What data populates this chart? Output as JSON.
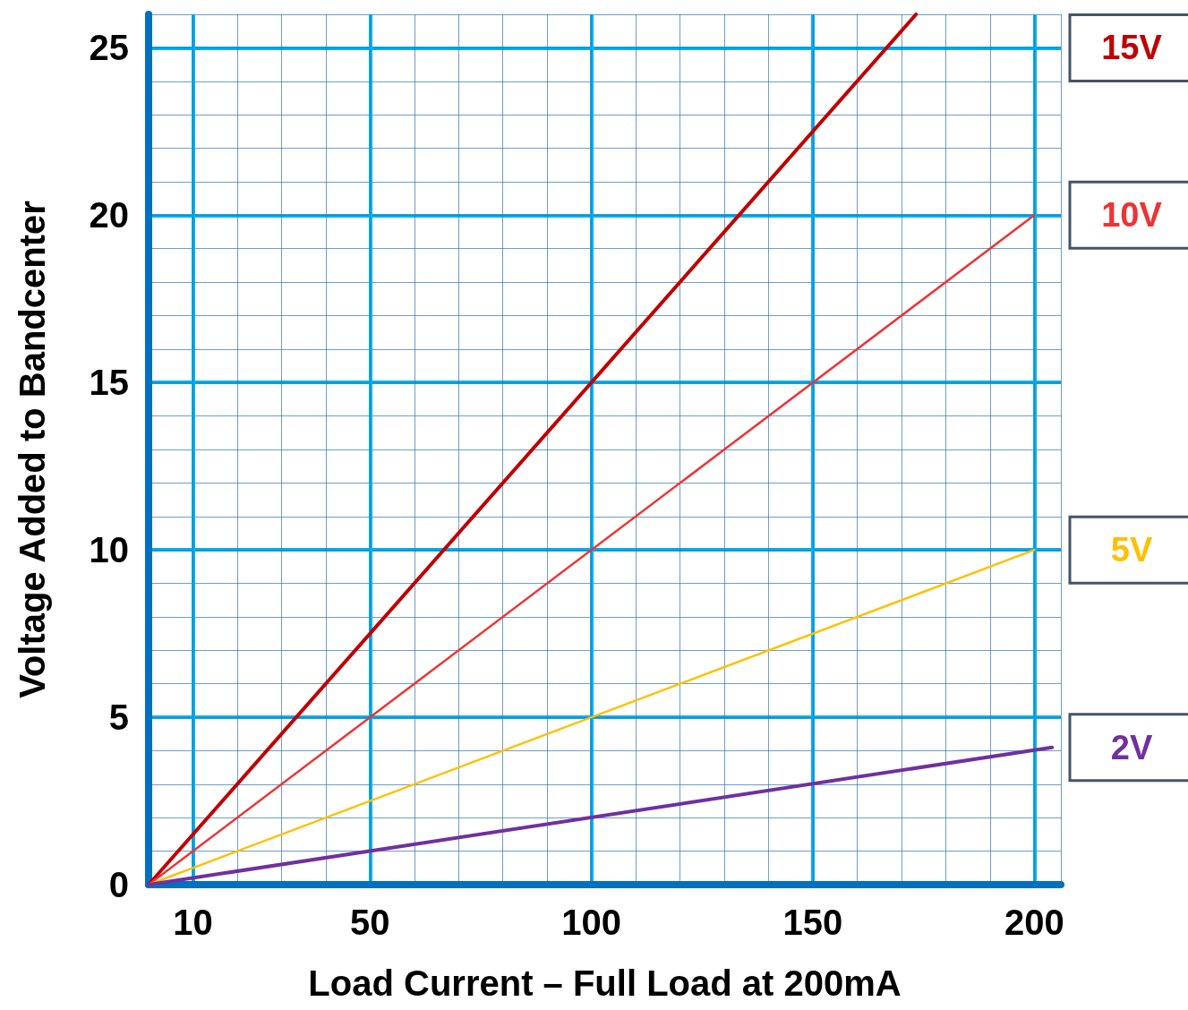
{
  "chart_data": {
    "type": "line",
    "xlabel": "Load Current – Full Load at 200mA",
    "ylabel": "Voltage Added to Bandcenter",
    "xlim": [
      0,
      206
    ],
    "ylim": [
      0,
      26
    ],
    "xticks": [
      10,
      50,
      100,
      150,
      200
    ],
    "yticks": [
      0,
      5,
      10,
      15,
      20,
      25
    ],
    "grid": true,
    "marker": "none",
    "line_style": "solid",
    "series": [
      {
        "name": "15V",
        "color": "#c00000",
        "x": [
          0,
          173.3
        ],
        "values": [
          0,
          26
        ]
      },
      {
        "name": "10V",
        "color": "#ee3333",
        "x": [
          0,
          200
        ],
        "values": [
          0,
          20
        ]
      },
      {
        "name": "5V",
        "color": "#ffc000",
        "x": [
          0,
          200
        ],
        "values": [
          0,
          10
        ]
      },
      {
        "name": "2V",
        "color": "#7030a0",
        "x": [
          0,
          204
        ],
        "values": [
          0,
          4.1
        ]
      }
    ]
  }
}
